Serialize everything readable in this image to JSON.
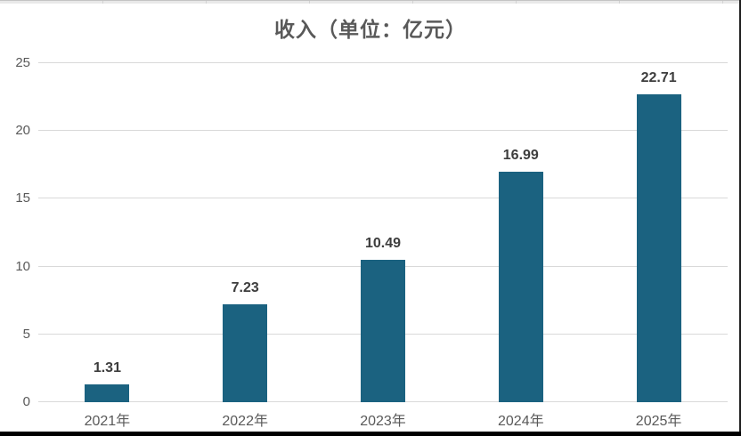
{
  "chart_data": {
    "type": "bar",
    "title": "收入（单位：亿元）",
    "categories": [
      "2021年",
      "2022年",
      "2023年",
      "2024年",
      "2025年"
    ],
    "values": [
      1.31,
      7.23,
      10.49,
      16.99,
      22.71
    ],
    "value_labels": [
      "1.31",
      "7.23",
      "10.49",
      "16.99",
      "22.71"
    ],
    "xlabel": "",
    "ylabel": "",
    "ylim": [
      0,
      25
    ],
    "yticks": [
      0,
      5,
      10,
      15,
      20,
      25
    ],
    "grid": "horizontal",
    "legend": "none",
    "bar_color": "#1b6280",
    "gridline_color": "#d9d9d9",
    "axis_text_color": "#595959",
    "value_label_color": "#3d3d3d",
    "title_color": "#595959"
  }
}
